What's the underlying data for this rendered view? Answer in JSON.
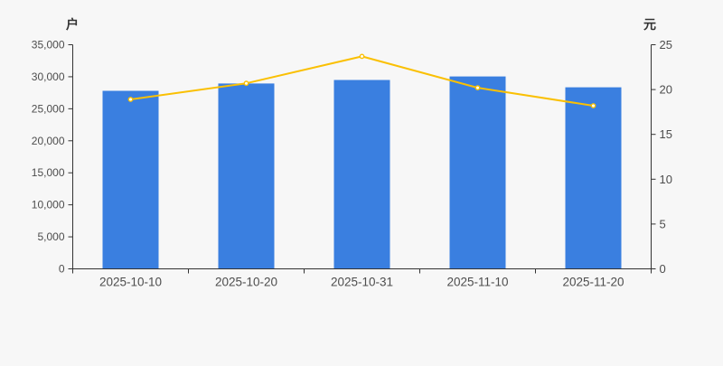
{
  "chart_data": {
    "type": "bar",
    "subtype": "dual-axis-bar-line-combo",
    "title": "",
    "legend": "none",
    "grid": false,
    "background": "#f7f7f7",
    "axis_color": "#333333",
    "tick_label_color": "#4d4d4d",
    "categories": [
      "2025-10-10",
      "2025-10-20",
      "2025-10-31",
      "2025-11-10",
      "2025-11-20"
    ],
    "series": [
      {
        "type": "bar",
        "axis": "left",
        "color": "#3a7fe0",
        "values": [
          27800,
          28950,
          29500,
          30050,
          28350
        ]
      },
      {
        "type": "line",
        "axis": "right",
        "color": "#fac003",
        "marker_fill": "#ffffff",
        "values": [
          18.9,
          20.7,
          23.7,
          20.2,
          18.2
        ]
      }
    ],
    "left_axis": {
      "name": "户",
      "min": 0,
      "max": 35000,
      "step": 5000,
      "tick_labels": [
        "0",
        "5,000",
        "10,000",
        "15,000",
        "20,000",
        "25,000",
        "30,000",
        "35,000"
      ]
    },
    "right_axis": {
      "name": "元",
      "min": 0,
      "max": 25,
      "step": 5,
      "tick_labels": [
        "0",
        "5",
        "10",
        "15",
        "20",
        "25"
      ]
    }
  }
}
